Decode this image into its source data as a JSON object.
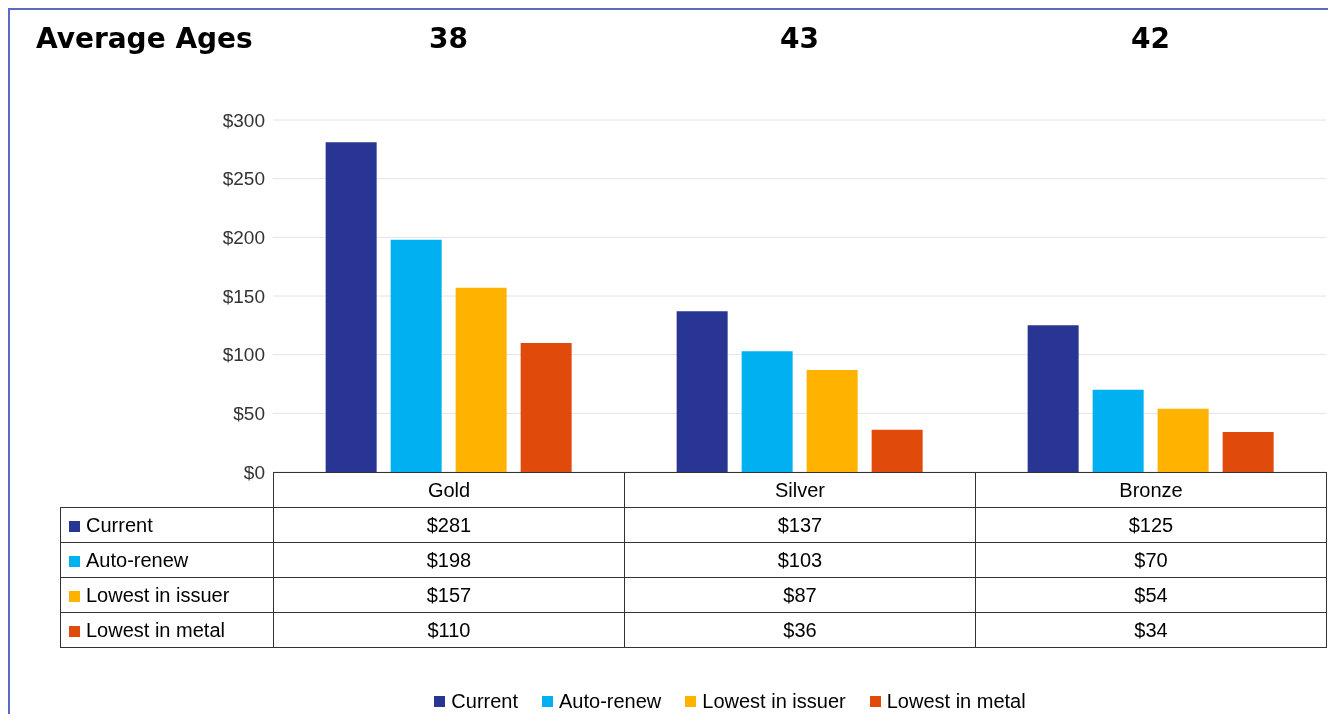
{
  "chart_data": {
    "type": "bar",
    "title": "Average Ages",
    "annotations": [
      "38",
      "43",
      "42"
    ],
    "categories": [
      "Gold",
      "Silver",
      "Bronze"
    ],
    "series": [
      {
        "name": "Current",
        "color": "#283593",
        "values": [
          281,
          137,
          125
        ],
        "value_labels": [
          "$281",
          "$137",
          "$125"
        ]
      },
      {
        "name": "Auto-renew",
        "color": "#00b0f0",
        "values": [
          198,
          103,
          70
        ],
        "value_labels": [
          "$198",
          "$103",
          "$70"
        ]
      },
      {
        "name": "Lowest in issuer",
        "color": "#ffb300",
        "values": [
          157,
          87,
          54
        ],
        "value_labels": [
          "$157",
          "$87",
          "$54"
        ]
      },
      {
        "name": "Lowest in metal",
        "color": "#e04a0a",
        "values": [
          110,
          36,
          34
        ],
        "value_labels": [
          "$110",
          "$36",
          "$34"
        ]
      }
    ],
    "ylim": [
      0,
      300
    ],
    "yticks": [
      {
        "value": 0,
        "label": "$0"
      },
      {
        "value": 50,
        "label": "$50"
      },
      {
        "value": 100,
        "label": "$100"
      },
      {
        "value": 150,
        "label": "$150"
      },
      {
        "value": 200,
        "label": "$200"
      },
      {
        "value": 250,
        "label": "$250"
      },
      {
        "value": 300,
        "label": "$300"
      }
    ],
    "grid": "y",
    "legend": "bottom"
  }
}
